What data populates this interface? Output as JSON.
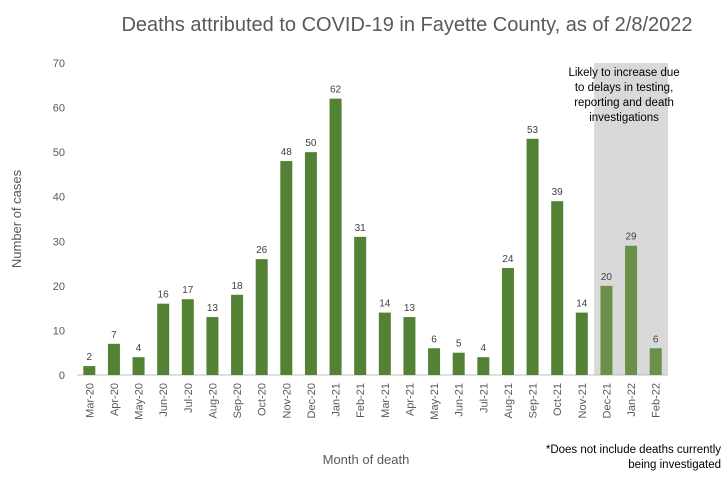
{
  "chart_data": {
    "type": "bar",
    "title": "Deaths attributed to COVID-19 in Fayette County, as of 2/8/2022",
    "xlabel": "Month of death",
    "ylabel": "Number of cases",
    "ylim": [
      0,
      70
    ],
    "yticks": [
      0,
      10,
      20,
      30,
      40,
      50,
      60,
      70
    ],
    "grid": false,
    "categories": [
      "Mar-20",
      "Apr-20",
      "May-20",
      "Jun-20",
      "Jul-20",
      "Aug-20",
      "Sep-20",
      "Oct-20",
      "Nov-20",
      "Dec-20",
      "Jan-21",
      "Feb-21",
      "Mar-21",
      "Apr-21",
      "May-21",
      "Jun-21",
      "Jul-21",
      "Aug-21",
      "Sep-21",
      "Oct-21",
      "Nov-21",
      "Dec-21",
      "Jan-22",
      "Feb-22"
    ],
    "values": [
      2,
      7,
      4,
      16,
      17,
      13,
      18,
      26,
      48,
      50,
      62,
      31,
      14,
      13,
      6,
      5,
      4,
      24,
      53,
      39,
      14,
      20,
      29,
      6
    ],
    "highlight": {
      "start_category": "Dec-21",
      "end_category": "Feb-22",
      "note_lines": [
        "Likely to increase due",
        "to delays in testing,",
        "reporting and death",
        "investigations"
      ],
      "shade_color": "#d9d9d9"
    },
    "bar_color": "#548235",
    "highlight_bar_color": "#6a9049",
    "footnote_lines": [
      "*Does not include deaths currently",
      "being investigated"
    ]
  }
}
